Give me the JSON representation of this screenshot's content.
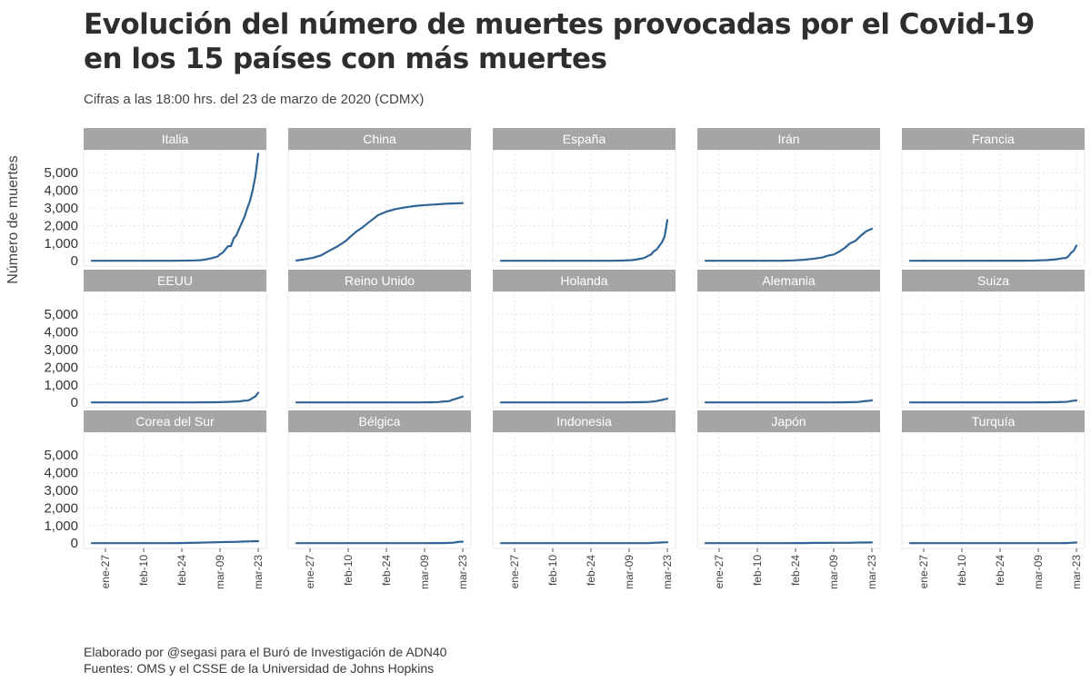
{
  "chart_data": {
    "type": "line",
    "title": "Evolución del número de muertes provocadas por el Covid-19 en los 15 países con más muertes",
    "subtitle": "Cifras a las 18:00 hrs. del 23 de marzo de 2020 (CDMX)",
    "ylabel": "Número de muertes",
    "xlabel": "",
    "ylim": [
      -300,
      6300
    ],
    "y_ticks": [
      0,
      1000,
      2000,
      3000,
      4000,
      5000
    ],
    "y_tick_labels": [
      "0",
      "1,000",
      "2,000",
      "3,000",
      "4,000",
      "5,000"
    ],
    "x_day_range": [
      0,
      61
    ],
    "x_ticks": [
      5,
      19,
      33,
      47,
      61
    ],
    "x_tick_labels": [
      "ene-27",
      "feb-10",
      "feb-24",
      "mar-09",
      "mar-23"
    ],
    "grid": true,
    "series_color": "#2f6494",
    "x_note": "x values are days since 22-Jan-2020",
    "series": [
      {
        "name": "Italia",
        "x": [
          0,
          30,
          38,
          40,
          42,
          44,
          46,
          47,
          48,
          50,
          51,
          52,
          53,
          54,
          55,
          56,
          57,
          58,
          59,
          60,
          61
        ],
        "values": [
          0,
          0,
          21,
          34,
          79,
          148,
          233,
          366,
          463,
          827,
          827,
          1266,
          1441,
          1809,
          2158,
          2503,
          2978,
          3405,
          4032,
          4825,
          6077
        ]
      },
      {
        "name": "China",
        "x": [
          0,
          3,
          6,
          9,
          12,
          15,
          18,
          21,
          22,
          24,
          27,
          30,
          33,
          36,
          39,
          42,
          45,
          48,
          51,
          54,
          57,
          61
        ],
        "values": [
          17,
          80,
          170,
          304,
          564,
          811,
          1113,
          1523,
          1663,
          1868,
          2236,
          2592,
          2788,
          2915,
          3012,
          3085,
          3136,
          3169,
          3194,
          3231,
          3255,
          3274
        ]
      },
      {
        "name": "España",
        "x": [
          0,
          40,
          45,
          48,
          50,
          52,
          53,
          54,
          55,
          56,
          57,
          58,
          59,
          60,
          61
        ],
        "values": [
          0,
          0,
          17,
          36,
          84,
          136,
          195,
          289,
          342,
          533,
          623,
          830,
          1043,
          1375,
          2311
        ]
      },
      {
        "name": "Irán",
        "x": [
          0,
          28,
          32,
          36,
          40,
          43,
          45,
          47,
          49,
          51,
          53,
          55,
          57,
          59,
          61
        ],
        "values": [
          0,
          2,
          22,
          54,
          124,
          194,
          291,
          354,
          514,
          724,
          988,
          1135,
          1433,
          1685,
          1812
        ]
      },
      {
        "name": "Francia",
        "x": [
          0,
          40,
          45,
          48,
          50,
          52,
          54,
          56,
          57,
          58,
          59,
          60,
          61
        ],
        "values": [
          0,
          2,
          9,
          25,
          33,
          61,
          91,
          148,
          148,
          243,
          450,
          562,
          860
        ]
      },
      {
        "name": "EEUU",
        "x": [
          0,
          38,
          45,
          48,
          50,
          52,
          54,
          56,
          57,
          58,
          59,
          60,
          61
        ],
        "values": [
          0,
          0,
          11,
          19,
          31,
          40,
          57,
          100,
          108,
          150,
          260,
          340,
          550
        ]
      },
      {
        "name": "Reino Unido",
        "x": [
          0,
          45,
          50,
          52,
          54,
          56,
          57,
          58,
          59,
          60,
          61
        ],
        "values": [
          0,
          0,
          8,
          21,
          56,
          72,
          137,
          177,
          233,
          281,
          335
        ]
      },
      {
        "name": "Holanda",
        "x": [
          0,
          45,
          50,
          52,
          54,
          56,
          57,
          58,
          59,
          60,
          61
        ],
        "values": [
          0,
          0,
          10,
          12,
          24,
          58,
          76,
          106,
          136,
          179,
          213
        ]
      },
      {
        "name": "Alemania",
        "x": [
          0,
          46,
          50,
          52,
          54,
          56,
          57,
          58,
          59,
          60,
          61
        ],
        "values": [
          0,
          0,
          2,
          7,
          12,
          24,
          44,
          67,
          84,
          94,
          123
        ]
      },
      {
        "name": "Suiza",
        "x": [
          0,
          45,
          50,
          52,
          54,
          56,
          57,
          58,
          59,
          60,
          61
        ],
        "values": [
          0,
          0,
          4,
          11,
          14,
          27,
          28,
          43,
          76,
          98,
          120
        ]
      },
      {
        "name": "Corea del Sur",
        "x": [
          0,
          28,
          32,
          36,
          40,
          44,
          48,
          52,
          56,
          58,
          61
        ],
        "values": [
          0,
          0,
          6,
          13,
          28,
          44,
          60,
          72,
          91,
          102,
          111
        ]
      },
      {
        "name": "Bélgica",
        "x": [
          0,
          48,
          52,
          54,
          56,
          57,
          58,
          59,
          60,
          61
        ],
        "values": [
          0,
          0,
          4,
          5,
          14,
          21,
          37,
          67,
          75,
          88
        ]
      },
      {
        "name": "Indonesia",
        "x": [
          0,
          48,
          52,
          54,
          56,
          57,
          58,
          59,
          60,
          61
        ],
        "values": [
          0,
          0,
          1,
          5,
          19,
          25,
          32,
          38,
          48,
          49
        ]
      },
      {
        "name": "Japón",
        "x": [
          0,
          22,
          30,
          36,
          40,
          44,
          48,
          52,
          56,
          58,
          61
        ],
        "values": [
          0,
          1,
          1,
          6,
          12,
          16,
          19,
          22,
          33,
          35,
          42
        ]
      },
      {
        "name": "Turquía",
        "x": [
          0,
          53,
          55,
          57,
          58,
          59,
          60,
          61
        ],
        "values": [
          0,
          0,
          1,
          4,
          9,
          21,
          30,
          37
        ]
      }
    ]
  },
  "caption": {
    "line1": "Elaborado por @segasi para el Buró de Investigación de ADN40",
    "line2": "Fuentes: OMS y el CSSE de la Universidad de Johns Hopkins"
  }
}
